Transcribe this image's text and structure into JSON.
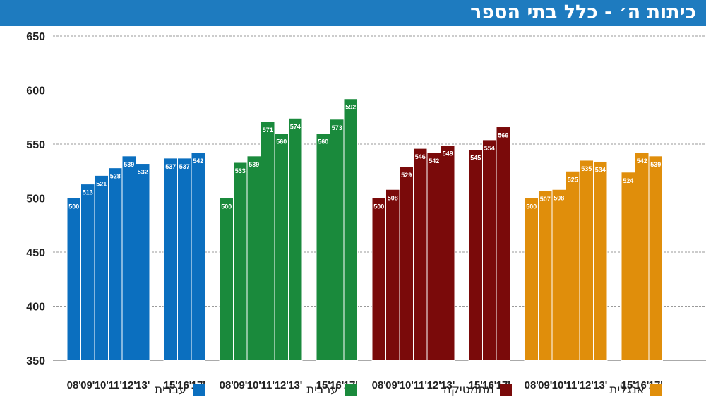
{
  "title": "כיתות ה׳ - כלל בתי הספר",
  "colors": {
    "header_bg": "#1e7bbf",
    "hebrew": "#0b6fbf",
    "arabic": "#1a8a3c",
    "math": "#7a0a0a",
    "english": "#e08e0b"
  },
  "chart_data": {
    "type": "bar",
    "ylim": [
      350,
      650
    ],
    "yticks": [
      350,
      400,
      450,
      500,
      550,
      600,
      650
    ],
    "grid": true,
    "legend_position": "bottom",
    "groups": [
      {
        "name": "עברית",
        "color": "#0b6fbf",
        "early": {
          "x": [
            "08'",
            "09'",
            "10'",
            "11'",
            "12'",
            "13'"
          ],
          "values": [
            500,
            513,
            521,
            528,
            539,
            532
          ]
        },
        "late": {
          "x": [
            "15'",
            "16'",
            "17'"
          ],
          "values": [
            537,
            537,
            542
          ]
        }
      },
      {
        "name": "ערבית",
        "color": "#1a8a3c",
        "early": {
          "x": [
            "08'",
            "09'",
            "10'",
            "11'",
            "12'",
            "13'"
          ],
          "values": [
            500,
            533,
            539,
            571,
            560,
            574
          ]
        },
        "late": {
          "x": [
            "15'",
            "16'",
            "17'"
          ],
          "values": [
            560,
            573,
            592
          ]
        }
      },
      {
        "name": "מתמטיקה",
        "color": "#7a0a0a",
        "early": {
          "x": [
            "08'",
            "09'",
            "10'",
            "11'",
            "12'",
            "13'"
          ],
          "values": [
            500,
            508,
            529,
            546,
            542,
            549
          ]
        },
        "late": {
          "x": [
            "15'",
            "16'",
            "17'"
          ],
          "values": [
            545,
            554,
            566
          ]
        }
      },
      {
        "name": "אנגלית",
        "color": "#e08e0b",
        "early": {
          "x": [
            "08'",
            "09'",
            "10'",
            "11'",
            "12'",
            "13'"
          ],
          "values": [
            500,
            507,
            508,
            525,
            535,
            534
          ]
        },
        "late": {
          "x": [
            "15'",
            "16'",
            "17'"
          ],
          "values": [
            524,
            542,
            539
          ]
        }
      }
    ]
  }
}
